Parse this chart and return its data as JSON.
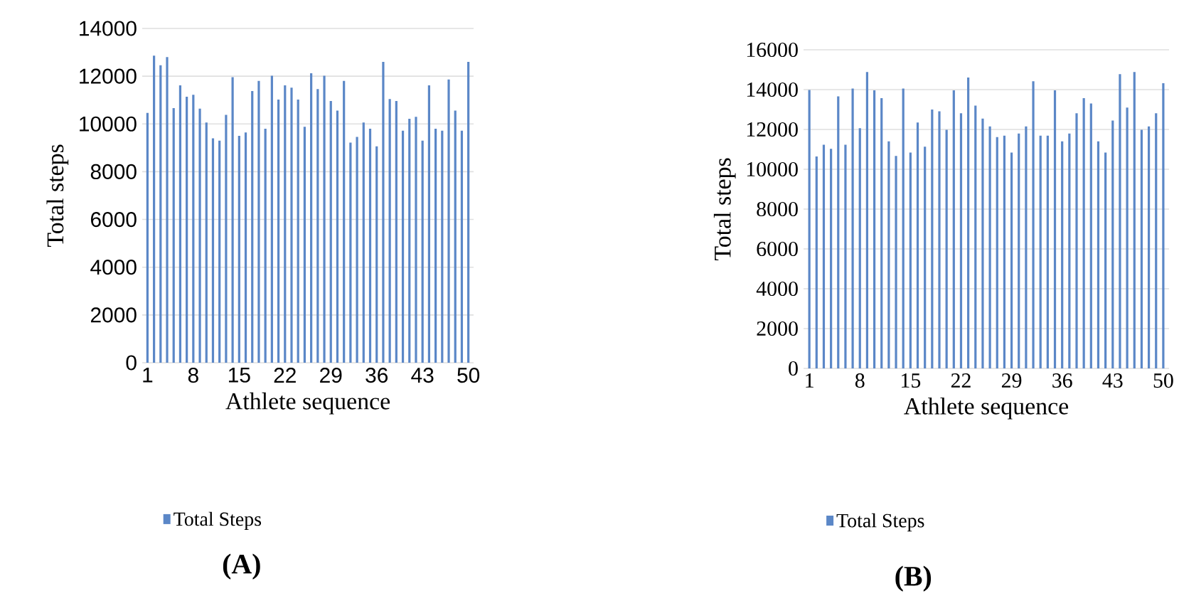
{
  "chart_data": [
    {
      "type": "bar",
      "xlabel": "Athlete sequence",
      "ylabel": "Total steps",
      "categories": [
        "1",
        null,
        null,
        null,
        null,
        null,
        null,
        "8",
        null,
        null,
        null,
        null,
        null,
        null,
        "15",
        null,
        null,
        null,
        null,
        null,
        null,
        "22",
        null,
        null,
        null,
        null,
        null,
        null,
        "29",
        null,
        null,
        null,
        null,
        null,
        null,
        "36",
        null,
        null,
        null,
        null,
        null,
        null,
        "43",
        null,
        null,
        null,
        null,
        null,
        null,
        "50"
      ],
      "series": [
        {
          "name": "Total Steps",
          "color": "#5b87c7",
          "values": [
            10460,
            12860,
            12460,
            12800,
            10660,
            11620,
            11140,
            11220,
            10640,
            10060,
            9400,
            9300,
            10380,
            11960,
            9500,
            9640,
            11380,
            11800,
            9800,
            12020,
            11020,
            11620,
            11520,
            11020,
            9880,
            12120,
            11460,
            12020,
            10960,
            10560,
            11800,
            9220,
            9460,
            10060,
            9800,
            9060,
            12600,
            11040,
            10960,
            9720,
            10220,
            10300,
            9300,
            11620,
            9800,
            9720,
            11860,
            10560,
            9720,
            12600
          ]
        }
      ],
      "ylim": [
        0,
        14000
      ],
      "yticks": [
        0,
        2000,
        4000,
        6000,
        8000,
        10000,
        12000,
        14000
      ],
      "grid": "y",
      "legend": "bottom",
      "annotations": [
        "(A)"
      ]
    },
    {
      "type": "bar",
      "xlabel": "Athlete sequence",
      "ylabel": "Total steps",
      "categories": [
        "1",
        null,
        null,
        null,
        null,
        null,
        null,
        "8",
        null,
        null,
        null,
        null,
        null,
        null,
        "15",
        null,
        null,
        null,
        null,
        null,
        null,
        "22",
        null,
        null,
        null,
        null,
        null,
        null,
        "29",
        null,
        null,
        null,
        null,
        null,
        null,
        "36",
        null,
        null,
        null,
        null,
        null,
        null,
        "43",
        null,
        null,
        null,
        null,
        null,
        null,
        "50"
      ],
      "series": [
        {
          "name": "Total Steps",
          "color": "#5b87c7",
          "values": [
            13980,
            10640,
            11230,
            11030,
            13660,
            11230,
            14050,
            12060,
            14880,
            13960,
            13570,
            11400,
            10670,
            14050,
            10840,
            12350,
            11130,
            13000,
            12910,
            11980,
            13960,
            12810,
            14610,
            13200,
            12540,
            12150,
            11620,
            11690,
            10840,
            11790,
            12150,
            14420,
            11690,
            11690,
            13960,
            11400,
            11790,
            12810,
            13570,
            13300,
            11400,
            10840,
            12450,
            14780,
            13100,
            14880,
            11980,
            12150,
            12810,
            14320
          ]
        }
      ],
      "ylim": [
        0,
        16000
      ],
      "yticks": [
        0,
        2000,
        4000,
        6000,
        8000,
        10000,
        12000,
        14000,
        16000
      ],
      "grid": "y",
      "legend": "bottom",
      "annotations": [
        "(B)"
      ]
    }
  ]
}
